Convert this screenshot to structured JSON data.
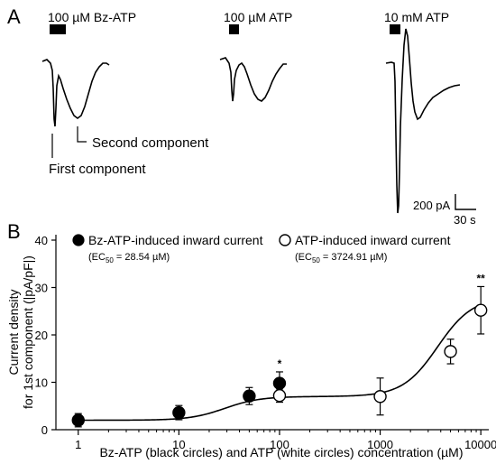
{
  "panels": {
    "a_label": "A",
    "b_label": "B"
  },
  "traces": {
    "bz_label": "100 µM Bz-ATP",
    "atp100_label": "100 µM ATP",
    "atp10m_label": "10 mM ATP",
    "first_component": "First component",
    "second_component": "Second component",
    "scale_current": "200 pA",
    "scale_time": "30 s"
  },
  "legend": {
    "bz_label": "Bz-ATP-induced inward current",
    "bz_ec50_prefix": "(EC",
    "bz_ec50_sub": "50",
    "bz_ec50_value": " = 28.54 µM)",
    "atp_label": "ATP-induced inward current",
    "atp_ec50_prefix": "(EC",
    "atp_ec50_sub": "50",
    "atp_ec50_value": " = 3724.91 µM)"
  },
  "chart_data": {
    "type": "scatter",
    "xscale": "log",
    "xlim": [
      0.6,
      12000
    ],
    "ylim": [
      0,
      40
    ],
    "xticks": [
      1,
      10,
      100,
      1000,
      10000
    ],
    "xtick_labels": [
      "1",
      "10",
      "100",
      "1000",
      "10000"
    ],
    "yticks": [
      0,
      10,
      20,
      30,
      40
    ],
    "ytick_labels": [
      "0",
      "10",
      "20",
      "30",
      "40"
    ],
    "xlabel": "Bz-ATP (black circles) and ATP (white circles) concentration (µM)",
    "ylabel_line1": "Current density",
    "ylabel_line2": "for 1st component (|pA/pF|)",
    "series": [
      {
        "name": "Bz-ATP-induced inward current",
        "marker": "filled",
        "points": [
          {
            "x": 1,
            "y": 2.0,
            "err": 1.4
          },
          {
            "x": 10,
            "y": 3.6,
            "err": 1.5
          },
          {
            "x": 50,
            "y": 7.1,
            "err": 1.8
          },
          {
            "x": 100,
            "y": 9.8,
            "err": 2.4
          }
        ]
      },
      {
        "name": "ATP-induced inward current",
        "marker": "open",
        "points": [
          {
            "x": 100,
            "y": 7.2,
            "err": 1.4
          },
          {
            "x": 1000,
            "y": 7.0,
            "err": 3.9
          },
          {
            "x": 5000,
            "y": 16.5,
            "err": 2.6
          },
          {
            "x": 10000,
            "y": 25.2,
            "err": 5.0
          }
        ]
      }
    ],
    "fit_curve": {
      "base": 2.0,
      "bz_plateau": 7.0,
      "bz_ec50": 28.54,
      "bz_hill": 2.5,
      "atp_top": 28.0,
      "atp_ec50": 3724.91,
      "atp_hill": 2.5
    },
    "annotations": [
      {
        "x": 100,
        "text": "*"
      },
      {
        "x": 10000,
        "text": "**"
      }
    ]
  }
}
